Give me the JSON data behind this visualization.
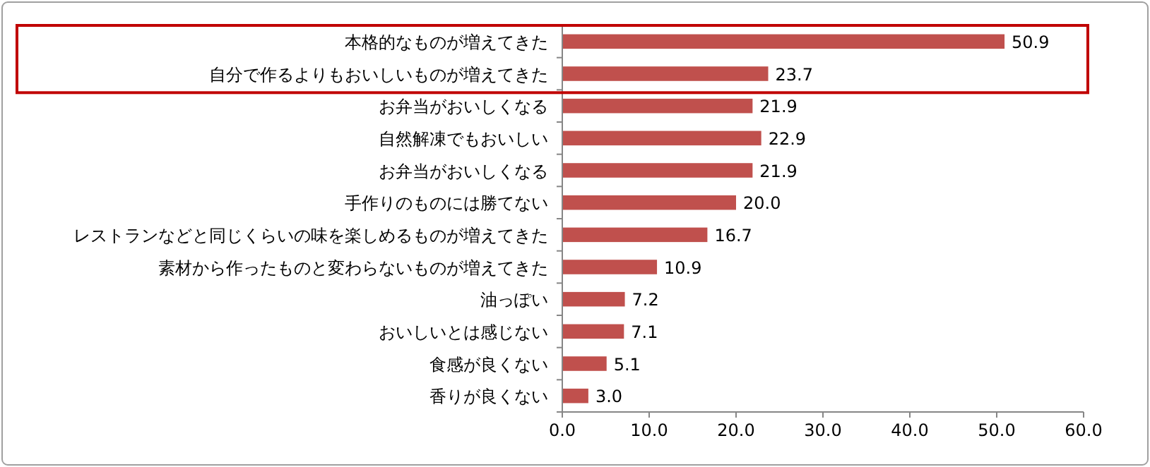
{
  "chart_data": {
    "type": "bar",
    "orientation": "horizontal",
    "categories": [
      "本格的なものが増えてきた",
      "自分で作るよりもおいしいものが増えてきた",
      "お弁当がおいしくなる",
      "自然解凍でもおいしい",
      "お弁当がおいしくなる",
      "手作りのものには勝てない",
      "レストランなどと同じくらいの味を楽しめるものが増えてきた",
      "素材から作ったものと変わらないものが増えてきた",
      "油っぽい",
      "おいしいとは感じない",
      "食感が良くない",
      "香りが良くない"
    ],
    "values": [
      50.9,
      23.7,
      21.9,
      22.9,
      21.9,
      20.0,
      16.7,
      10.9,
      7.2,
      7.1,
      5.1,
      3.0
    ],
    "value_labels": [
      "50.9",
      "23.7",
      "21.9",
      "22.9",
      "21.9",
      "20.0",
      "16.7",
      "10.9",
      "7.2",
      "7.1",
      "5.1",
      "3.0"
    ],
    "color": "#c0504d",
    "xlim": [
      0,
      60
    ],
    "xticks": [
      {
        "value": 0,
        "label": "0.0"
      },
      {
        "value": 10,
        "label": "10.0"
      },
      {
        "value": 20,
        "label": "20.0"
      },
      {
        "value": 30,
        "label": "30.0"
      },
      {
        "value": 40,
        "label": "40.0"
      },
      {
        "value": 50,
        "label": "50.0"
      },
      {
        "value": 60,
        "label": "60.0"
      }
    ]
  }
}
